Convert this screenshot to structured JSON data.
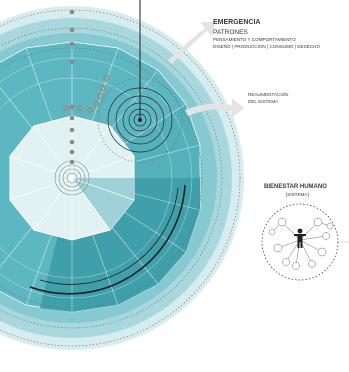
{
  "labels": {
    "emergencia": "EMERGENCIA",
    "patrones": "PATRONES",
    "pensamiento": "PENSAMIENTO Y COMPORTAMIENTO",
    "diseno": "DISEÑO | PRODUCCIÓN | CONSUMO | DESECHO",
    "realimentacion_1": "REALIMENTACIÓN",
    "realimentacion_2": "DEL SISTEMA",
    "bienestar": "BIENESTAR HUMANO",
    "sistema": "[SISTEMA]"
  },
  "colors": {
    "outer_halo": "#cfe9ec",
    "ring_light": "#a9d9df",
    "ring_mid": "#7cc6cf",
    "ring_main": "#5bb6c1",
    "ring_dark": "#3b9aa6",
    "ring_darker": "#2d8593",
    "core": "#e3f3f4",
    "core_line": "#ffffff",
    "dot_gray": "#8a8a8a",
    "dot_brown": "#b07a5a",
    "arrow_gray": "#e6e6e6",
    "text": "#3a3a3a"
  },
  "icons": [
    "person-icon",
    "network-node-icon",
    "arrow-icon"
  ]
}
